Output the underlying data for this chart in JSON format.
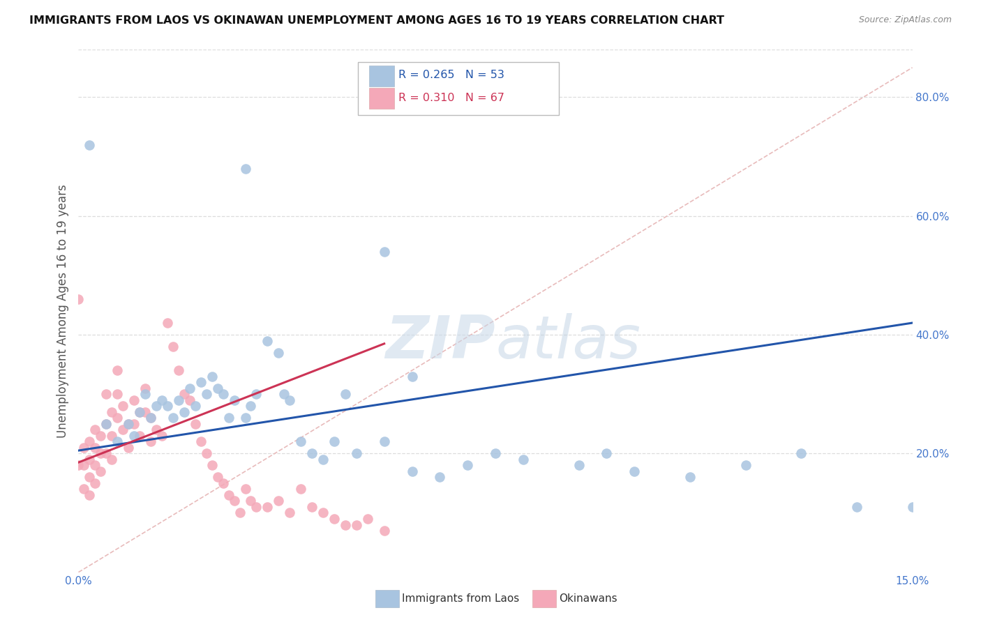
{
  "title": "IMMIGRANTS FROM LAOS VS OKINAWAN UNEMPLOYMENT AMONG AGES 16 TO 19 YEARS CORRELATION CHART",
  "source": "Source: ZipAtlas.com",
  "ylabel": "Unemployment Among Ages 16 to 19 years",
  "legend1_label": "Immigrants from Laos",
  "legend2_label": "Okinawans",
  "legend1_R": "R = 0.265",
  "legend1_N": "N = 53",
  "legend2_R": "R = 0.310",
  "legend2_N": "N = 67",
  "xlim": [
    0.0,
    0.15
  ],
  "ylim": [
    0.0,
    0.88
  ],
  "yticks": [
    0.2,
    0.4,
    0.6,
    0.8
  ],
  "xticks": [
    0.0,
    0.03,
    0.06,
    0.09,
    0.12,
    0.15
  ],
  "xtick_labels": [
    "0.0%",
    "",
    "",
    "",
    "",
    "15.0%"
  ],
  "ytick_labels": [
    "20.0%",
    "40.0%",
    "60.0%",
    "80.0%"
  ],
  "blue_color": "#A8C4E0",
  "pink_color": "#F4A8B8",
  "blue_line_color": "#2255AA",
  "pink_line_color": "#CC3355",
  "diagonal_color": "#E8BBBB",
  "blue_scatter_x": [
    0.002,
    0.005,
    0.007,
    0.009,
    0.01,
    0.011,
    0.012,
    0.013,
    0.014,
    0.015,
    0.016,
    0.017,
    0.018,
    0.019,
    0.02,
    0.021,
    0.022,
    0.023,
    0.024,
    0.025,
    0.026,
    0.027,
    0.028,
    0.03,
    0.031,
    0.032,
    0.034,
    0.036,
    0.037,
    0.038,
    0.04,
    0.042,
    0.044,
    0.046,
    0.048,
    0.05,
    0.055,
    0.06,
    0.065,
    0.07,
    0.075,
    0.08,
    0.09,
    0.095,
    0.1,
    0.11,
    0.12,
    0.13,
    0.14,
    0.15,
    0.055,
    0.03,
    0.06
  ],
  "blue_scatter_y": [
    0.72,
    0.25,
    0.22,
    0.25,
    0.23,
    0.27,
    0.3,
    0.26,
    0.28,
    0.29,
    0.28,
    0.26,
    0.29,
    0.27,
    0.31,
    0.28,
    0.32,
    0.3,
    0.33,
    0.31,
    0.3,
    0.26,
    0.29,
    0.26,
    0.28,
    0.3,
    0.39,
    0.37,
    0.3,
    0.29,
    0.22,
    0.2,
    0.19,
    0.22,
    0.3,
    0.2,
    0.22,
    0.17,
    0.16,
    0.18,
    0.2,
    0.19,
    0.18,
    0.2,
    0.17,
    0.16,
    0.18,
    0.2,
    0.11,
    0.11,
    0.54,
    0.68,
    0.33
  ],
  "pink_scatter_x": [
    0.0,
    0.0,
    0.001,
    0.001,
    0.001,
    0.002,
    0.002,
    0.002,
    0.002,
    0.003,
    0.003,
    0.003,
    0.003,
    0.004,
    0.004,
    0.004,
    0.005,
    0.005,
    0.005,
    0.006,
    0.006,
    0.006,
    0.007,
    0.007,
    0.007,
    0.008,
    0.008,
    0.009,
    0.009,
    0.01,
    0.01,
    0.011,
    0.011,
    0.012,
    0.012,
    0.013,
    0.013,
    0.014,
    0.015,
    0.016,
    0.017,
    0.018,
    0.019,
    0.02,
    0.021,
    0.022,
    0.023,
    0.024,
    0.025,
    0.026,
    0.027,
    0.028,
    0.029,
    0.03,
    0.031,
    0.032,
    0.034,
    0.036,
    0.038,
    0.04,
    0.042,
    0.044,
    0.046,
    0.048,
    0.05,
    0.052,
    0.055
  ],
  "pink_scatter_y": [
    0.46,
    0.18,
    0.21,
    0.18,
    0.14,
    0.22,
    0.19,
    0.16,
    0.13,
    0.24,
    0.21,
    0.18,
    0.15,
    0.23,
    0.2,
    0.17,
    0.3,
    0.25,
    0.2,
    0.27,
    0.23,
    0.19,
    0.34,
    0.3,
    0.26,
    0.28,
    0.24,
    0.25,
    0.21,
    0.29,
    0.25,
    0.27,
    0.23,
    0.31,
    0.27,
    0.26,
    0.22,
    0.24,
    0.23,
    0.42,
    0.38,
    0.34,
    0.3,
    0.29,
    0.25,
    0.22,
    0.2,
    0.18,
    0.16,
    0.15,
    0.13,
    0.12,
    0.1,
    0.14,
    0.12,
    0.11,
    0.11,
    0.12,
    0.1,
    0.14,
    0.11,
    0.1,
    0.09,
    0.08,
    0.08,
    0.09,
    0.07
  ],
  "blue_trend_x": [
    0.0,
    0.15
  ],
  "blue_trend_y": [
    0.205,
    0.42
  ],
  "pink_trend_x": [
    0.0,
    0.055
  ],
  "pink_trend_y": [
    0.185,
    0.385
  ],
  "watermark_zip": "ZIP",
  "watermark_atlas": "atlas",
  "background_color": "#FFFFFF",
  "grid_color": "#DDDDDD",
  "title_color": "#111111",
  "source_color": "#888888",
  "tick_color": "#4477CC",
  "ylabel_color": "#555555"
}
